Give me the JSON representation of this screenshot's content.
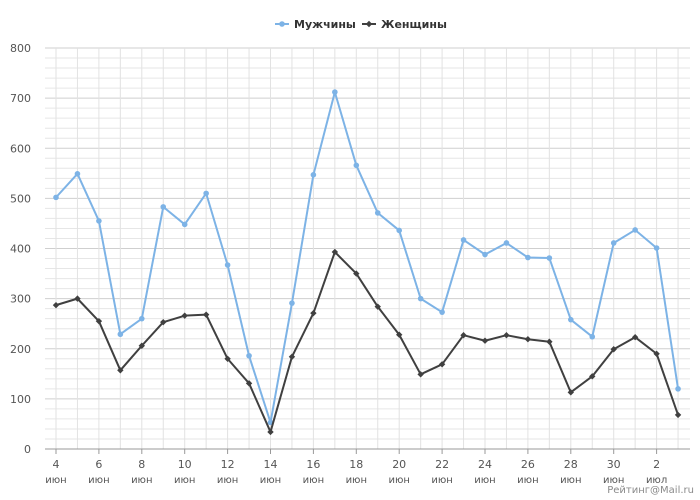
{
  "chart_data": {
    "type": "line",
    "title": "",
    "xlabel": "",
    "ylabel": "",
    "ylim": [
      0,
      800
    ],
    "yticks": [
      0,
      100,
      200,
      300,
      400,
      500,
      600,
      700,
      800
    ],
    "grid": true,
    "legend_position": "top-center",
    "x": [
      "4 июн",
      "5 июн",
      "6 июн",
      "7 июн",
      "8 июн",
      "9 июн",
      "10 июн",
      "11 июн",
      "12 июн",
      "13 июн",
      "14 июн",
      "15 июн",
      "16 июн",
      "17 июн",
      "18 июн",
      "19 июн",
      "20 июн",
      "21 июн",
      "22 июн",
      "23 июн",
      "24 июн",
      "25 июн",
      "26 июн",
      "27 июн",
      "28 июн",
      "29 июн",
      "30 июн",
      "1 июл",
      "2 июл",
      "3 июл"
    ],
    "x_tick_labels": [
      {
        "top": "4",
        "bottom": "июн"
      },
      {
        "top": "6",
        "bottom": "июн"
      },
      {
        "top": "8",
        "bottom": "июн"
      },
      {
        "top": "10",
        "bottom": "июн"
      },
      {
        "top": "12",
        "bottom": "июн"
      },
      {
        "top": "14",
        "bottom": "июн"
      },
      {
        "top": "16",
        "bottom": "июн"
      },
      {
        "top": "18",
        "bottom": "июн"
      },
      {
        "top": "20",
        "bottom": "июн"
      },
      {
        "top": "22",
        "bottom": "июн"
      },
      {
        "top": "24",
        "bottom": "июн"
      },
      {
        "top": "26",
        "bottom": "июн"
      },
      {
        "top": "28",
        "bottom": "июн"
      },
      {
        "top": "30",
        "bottom": "июн"
      },
      {
        "top": "2",
        "bottom": "июл"
      }
    ],
    "series": [
      {
        "name": "Мужчины",
        "color": "#7db3e6",
        "values": [
          502,
          549,
          455,
          229,
          260,
          483,
          448,
          510,
          367,
          186,
          53,
          291,
          547,
          712,
          566,
          471,
          436,
          300,
          273,
          417,
          388,
          411,
          382,
          381,
          258,
          224,
          411,
          437,
          401,
          120
        ]
      },
      {
        "name": "Женщины",
        "color": "#404040",
        "values": [
          287,
          300,
          255,
          157,
          206,
          253,
          266,
          268,
          180,
          131,
          34,
          184,
          271,
          393,
          350,
          284,
          228,
          149,
          169,
          227,
          216,
          227,
          219,
          214,
          113,
          145,
          199,
          223,
          190,
          68
        ]
      }
    ]
  },
  "watermark": "Рейтинг@Mail.ru"
}
